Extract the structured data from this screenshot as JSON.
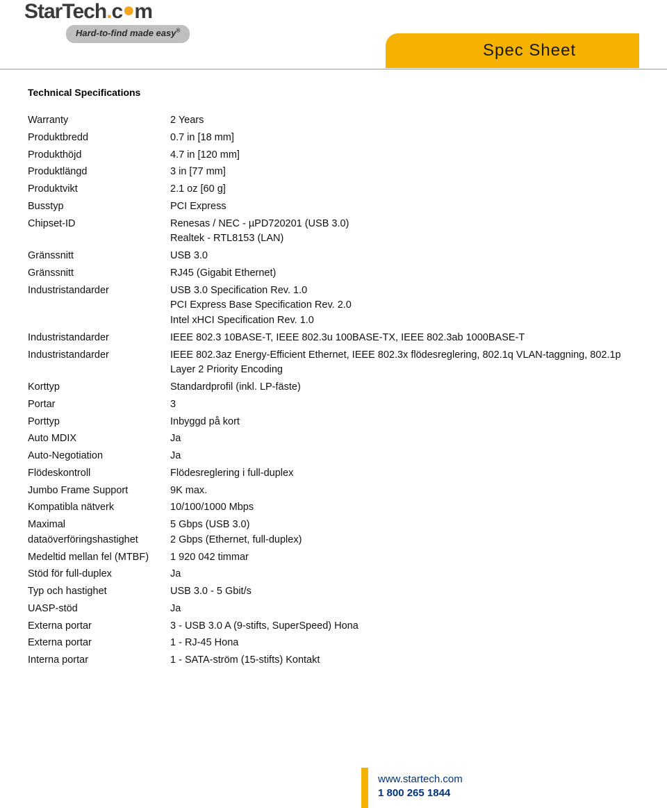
{
  "brand": {
    "name_part1": "StarTech",
    "name_dot_part": ".c",
    "name_o": "o",
    "name_m": "m",
    "tagline_prefix": "Hard-to-find ",
    "tagline_em": "made easy",
    "tagline_reg": "®"
  },
  "tab_label": "Spec Sheet",
  "section_title": "Technical Specifications",
  "rows": [
    {
      "label": "Warranty",
      "value": "2 Years"
    },
    {
      "label": "Produktbredd",
      "value": "0.7 in [18 mm]"
    },
    {
      "label": "Produkthöjd",
      "value": "4.7 in [120 mm]"
    },
    {
      "label": "Produktlängd",
      "value": "3 in [77 mm]"
    },
    {
      "label": "Produktvikt",
      "value": "2.1 oz [60 g]"
    },
    {
      "label": "Busstyp",
      "value": "PCI Express"
    },
    {
      "label": "Chipset-ID",
      "value": "Renesas / NEC - µPD720201 (USB 3.0)\nRealtek - RTL8153 (LAN)"
    },
    {
      "label": "Gränssnitt",
      "value": "USB 3.0"
    },
    {
      "label": "Gränssnitt",
      "value": "RJ45 (Gigabit Ethernet)"
    },
    {
      "label": "Industristandarder",
      "value": "USB 3.0 Specification Rev. 1.0\nPCI Express Base Specification Rev. 2.0\nIntel xHCI Specification Rev. 1.0"
    },
    {
      "label": "Industristandarder",
      "value": "IEEE 802.3 10BASE-T, IEEE 802.3u 100BASE-TX, IEEE 802.3ab 1000BASE-T"
    },
    {
      "label": "Industristandarder",
      "value": "IEEE 802.3az Energy-Efficient Ethernet, IEEE 802.3x flödesreglering, 802.1q VLAN-taggning, 802.1p Layer 2 Priority Encoding"
    },
    {
      "label": "Korttyp",
      "value": "Standardprofil (inkl. LP-fäste)"
    },
    {
      "label": "Portar",
      "value": "3"
    },
    {
      "label": "Porttyp",
      "value": "Inbyggd på kort"
    },
    {
      "label": "Auto MDIX",
      "value": "Ja"
    },
    {
      "label": "Auto-Negotiation",
      "value": "Ja"
    },
    {
      "label": "Flödeskontroll",
      "value": "Flödesreglering i full-duplex"
    },
    {
      "label": "Jumbo Frame Support",
      "value": "9K max."
    },
    {
      "label": "Kompatibla nätverk",
      "value": "10/100/1000 Mbps"
    },
    {
      "label": "Maximal dataöverföringshastighet",
      "value": "5 Gbps (USB 3.0)\n2 Gbps (Ethernet, full-duplex)"
    },
    {
      "label": "Medeltid mellan fel (MTBF)",
      "value": "1 920 042 timmar"
    },
    {
      "label": "Stöd för full-duplex",
      "value": "Ja"
    },
    {
      "label": "Typ och hastighet",
      "value": "USB 3.0 - 5 Gbit/s"
    },
    {
      "label": "UASP-stöd",
      "value": "Ja"
    },
    {
      "label": "Externa portar",
      "value": "3 - USB 3.0 A (9-stifts, SuperSpeed) Hona"
    },
    {
      "label": "Externa portar",
      "value": "1 - RJ-45 Hona"
    },
    {
      "label": "Interna portar",
      "value": "1 - SATA-ström (15-stifts) Kontakt"
    }
  ],
  "footer": {
    "url": "www.startech.com",
    "phone": "1 800 265 1844"
  },
  "colors": {
    "accent": "#f6b200",
    "link": "#00357a",
    "text": "#111111"
  }
}
